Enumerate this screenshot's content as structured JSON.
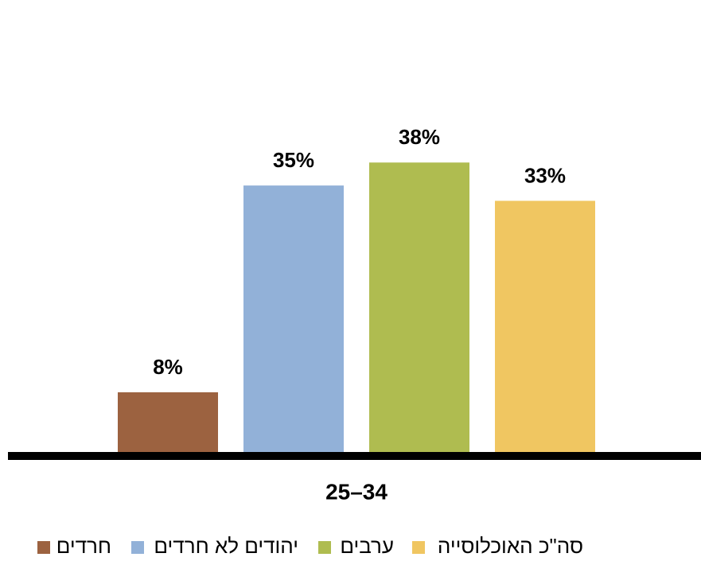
{
  "chart_data": {
    "type": "bar",
    "categories": [
      "25–34"
    ],
    "series": [
      {
        "name": "חרדים",
        "color": "#9c6240",
        "values": [
          8
        ],
        "value_labels": [
          "8%"
        ]
      },
      {
        "name": "יהודים לא חרדים",
        "color": "#92b1d8",
        "values": [
          35
        ],
        "value_labels": [
          "35%"
        ]
      },
      {
        "name": "ערבים",
        "color": "#afbc50",
        "values": [
          38
        ],
        "value_labels": [
          "38%"
        ]
      },
      {
        "name": "סה\"כ האוכלוסייה",
        "color": "#f0c661",
        "values": [
          33
        ],
        "value_labels": [
          "33%"
        ]
      }
    ],
    "ylim": [
      0,
      40
    ],
    "legend": "bottom"
  }
}
